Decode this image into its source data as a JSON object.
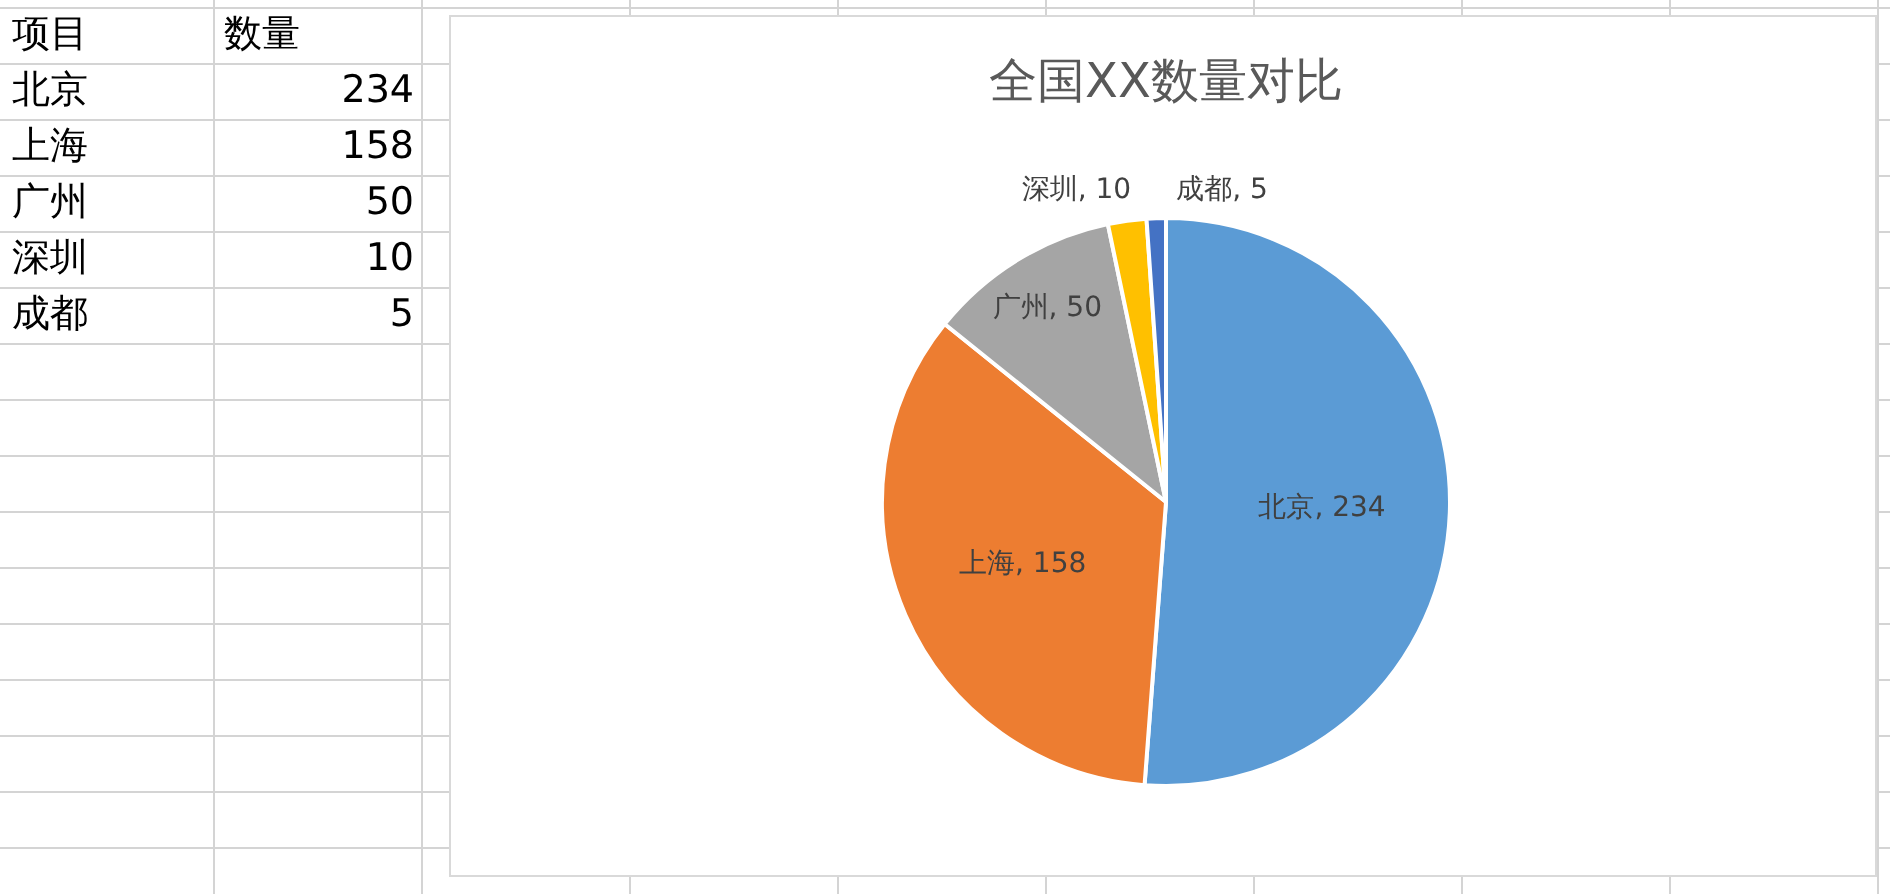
{
  "chart_data": [
    {
      "type": "other",
      "annotations": [
        "项目",
        "数量",
        "北京",
        "234",
        "上海",
        "158",
        "广州",
        "50",
        "深圳",
        "10",
        "成都",
        "5"
      ]
    },
    {
      "type": "pie",
      "title": "全国XX数量对比",
      "categories": [
        "北京",
        "上海",
        "广州",
        "深圳",
        "成都"
      ],
      "values": [
        234,
        158,
        50,
        10,
        5
      ],
      "colors": [
        "#5b9bd5",
        "#ed7d31",
        "#a5a5a5",
        "#ffc000",
        "#4472c4"
      ],
      "value_labels": [
        ", 234",
        ", 158",
        ", 50",
        ", 10",
        ", 5"
      ]
    }
  ]
}
